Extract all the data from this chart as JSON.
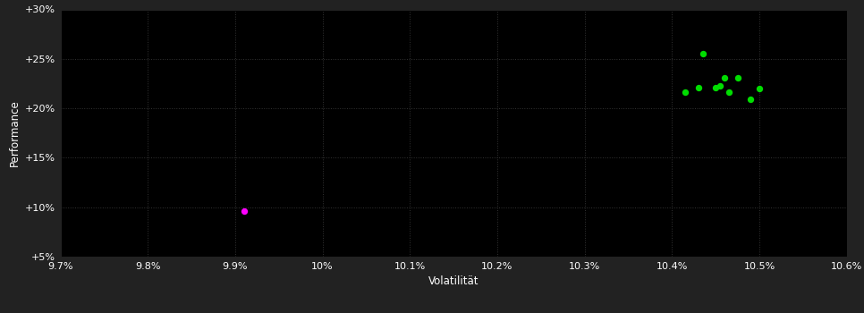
{
  "background_color": "#222222",
  "plot_bg_color": "#000000",
  "text_color": "#ffffff",
  "xlabel": "Volatilität",
  "ylabel": "Performance",
  "xlim": [
    0.097,
    0.106
  ],
  "ylim": [
    0.05,
    0.3
  ],
  "xticks": [
    0.097,
    0.098,
    0.099,
    0.1,
    0.101,
    0.102,
    0.103,
    0.104,
    0.105,
    0.106
  ],
  "yticks": [
    0.05,
    0.1,
    0.15,
    0.2,
    0.25,
    0.3
  ],
  "green_points": [
    [
      0.10435,
      0.2555
    ],
    [
      0.10455,
      0.2225
    ],
    [
      0.1045,
      0.2205
    ],
    [
      0.10415,
      0.216
    ],
    [
      0.1043,
      0.221
    ],
    [
      0.1046,
      0.2305
    ],
    [
      0.10475,
      0.231
    ],
    [
      0.10465,
      0.216
    ],
    [
      0.1049,
      0.2095
    ],
    [
      0.105,
      0.22
    ]
  ],
  "magenta_points": [
    [
      0.0991,
      0.096
    ]
  ],
  "green_color": "#00dd00",
  "magenta_color": "#ff00ff",
  "marker_size": 28
}
